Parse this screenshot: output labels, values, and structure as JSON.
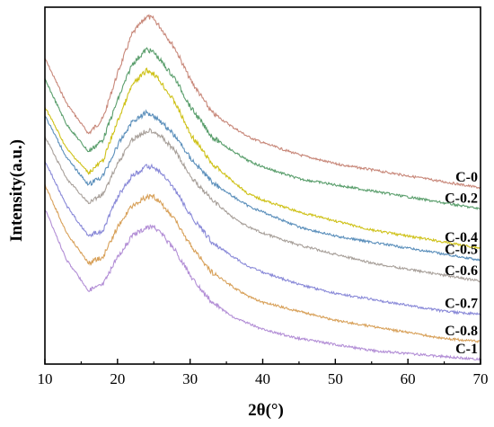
{
  "chart_data": {
    "type": "line",
    "title": "",
    "xlabel": "2θ(°)",
    "ylabel": "Intensity(a.u.)",
    "xlim": [
      10,
      70
    ],
    "xticks": [
      10,
      20,
      30,
      40,
      50,
      60,
      70
    ],
    "yticks_visible": false,
    "grid": false,
    "legend": "none",
    "x": [
      10,
      13,
      16,
      18,
      20,
      22,
      24,
      25,
      26,
      28,
      30,
      33,
      36,
      38,
      40,
      45,
      50,
      55,
      60,
      65,
      70
    ],
    "series": [
      {
        "name": "C-0",
        "color": "#c8887a",
        "values": [
          9.0,
          7.5,
          6.5,
          7.0,
          8.5,
          9.8,
          10.4,
          10.3,
          10.0,
          9.3,
          8.3,
          7.2,
          6.7,
          6.4,
          6.2,
          5.8,
          5.5,
          5.3,
          5.1,
          4.9,
          4.7
        ]
      },
      {
        "name": "C-0.2",
        "color": "#5a9e6c",
        "values": [
          8.3,
          6.8,
          5.9,
          6.3,
          7.6,
          8.8,
          9.3,
          9.2,
          8.9,
          8.3,
          7.4,
          6.4,
          5.9,
          5.6,
          5.4,
          5.0,
          4.8,
          4.6,
          4.4,
          4.2,
          4.0
        ]
      },
      {
        "name": "C-0.4",
        "color": "#cfc21a",
        "values": [
          7.4,
          6.0,
          5.2,
          5.6,
          6.9,
          8.1,
          8.6,
          8.5,
          8.2,
          7.5,
          6.5,
          5.5,
          4.9,
          4.5,
          4.3,
          3.9,
          3.6,
          3.3,
          3.1,
          2.9,
          2.7
        ]
      },
      {
        "name": "C-0.5",
        "color": "#5b8fbb",
        "values": [
          7.1,
          5.7,
          4.8,
          5.1,
          6.1,
          6.9,
          7.2,
          7.1,
          6.9,
          6.4,
          5.7,
          4.9,
          4.4,
          4.1,
          3.9,
          3.4,
          3.1,
          2.9,
          2.7,
          2.5,
          2.3
        ]
      },
      {
        "name": "C-0.6",
        "color": "#a8a09a",
        "values": [
          6.4,
          5.0,
          4.2,
          4.5,
          5.5,
          6.3,
          6.6,
          6.6,
          6.4,
          5.9,
          5.1,
          4.3,
          3.7,
          3.4,
          3.2,
          2.8,
          2.5,
          2.2,
          2.0,
          1.8,
          1.6
        ]
      },
      {
        "name": "C-0.7",
        "color": "#8a8ad8",
        "values": [
          5.6,
          4.1,
          3.1,
          3.3,
          4.4,
          5.1,
          5.4,
          5.4,
          5.2,
          4.6,
          3.8,
          2.9,
          2.4,
          2.1,
          1.9,
          1.5,
          1.2,
          1.0,
          0.8,
          0.6,
          0.5
        ]
      },
      {
        "name": "C-0.8",
        "color": "#d8a15a",
        "values": [
          4.8,
          3.2,
          2.2,
          2.4,
          3.4,
          4.1,
          4.4,
          4.4,
          4.2,
          3.6,
          2.8,
          1.9,
          1.4,
          1.1,
          0.9,
          0.6,
          0.3,
          0.1,
          -0.1,
          -0.3,
          -0.4
        ]
      },
      {
        "name": "C-1",
        "color": "#b38fd6",
        "values": [
          4.0,
          2.3,
          1.3,
          1.5,
          2.4,
          3.1,
          3.4,
          3.4,
          3.2,
          2.6,
          1.8,
          0.9,
          0.4,
          0.2,
          0.0,
          -0.3,
          -0.5,
          -0.7,
          -0.8,
          -0.9,
          -1.0
        ]
      }
    ]
  }
}
